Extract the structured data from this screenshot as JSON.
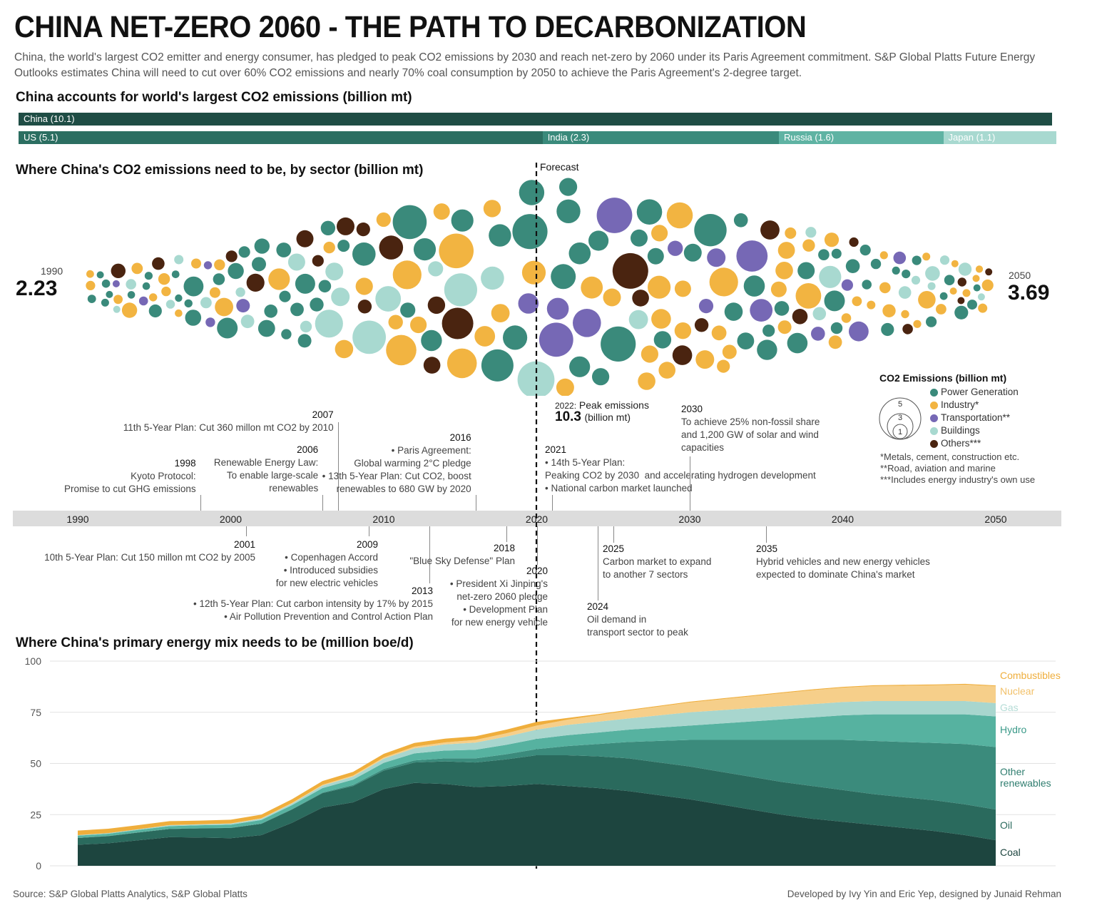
{
  "title": "CHINA NET-ZERO 2060 - THE PATH TO DECARBONIZATION",
  "intro": "China, the world's largest CO2 emitter and energy consumer, has pledged to peak CO2 emissions by 2030 and reach net-zero by 2060 under its Paris Agreement commitment. S&P Global Platts Future Energy Outlooks estimates China will need to cut over 60% CO2 emissions and nearly 70% coal consumption by 2050 to achieve the Paris Agreement's 2-degree target.",
  "colors": {
    "china": "#1f4d45",
    "us": "#2b6e61",
    "india": "#3a8a7b",
    "russia": "#5fb3a3",
    "japan": "#a8d9d0",
    "power": "#3a8a7b",
    "industry": "#f2b441",
    "transport": "#7668b5",
    "buildings": "#a8d9d0",
    "others": "#4a2410",
    "coal": "#1d453f",
    "oil": "#2a6a5d",
    "other_renewables": "#3b8b7c",
    "hydro": "#56b2a0",
    "gas": "#a8d6ce",
    "nuclear": "#f6cf8a",
    "combustibles": "#efae3c"
  },
  "emissions_bars": {
    "title": "China accounts for world's largest CO2 emissions (billion mt)",
    "china": "China (10.1)",
    "others": [
      {
        "label": "US (5.1)",
        "value": 5.1,
        "color": "#2b6e61"
      },
      {
        "label": "India (2.3)",
        "value": 2.3,
        "color": "#3a8a7b"
      },
      {
        "label": "Russia (1.6)",
        "value": 1.6,
        "color": "#5fb3a3"
      },
      {
        "label": "Japan (1.1)",
        "value": 1.1,
        "color": "#a8d9d0"
      }
    ]
  },
  "sector": {
    "title": "Where China's CO2 emissions need to be, by sector (billion mt)",
    "forecast_label": "Forecast",
    "start_year": "1990",
    "start_value": "2.23",
    "end_year": "2050",
    "end_value": "3.69",
    "peak_label": "Peak emissions",
    "peak_year": "2022:",
    "peak_value": "10.3",
    "peak_unit": "(billion mt)"
  },
  "legend": {
    "title": "CO2 Emissions (billion mt)",
    "sizes": [
      "5",
      "3",
      "1"
    ],
    "items": [
      "Power Generation",
      "Industry*",
      "Transportation**",
      "Buildings",
      "Others***"
    ],
    "notes": [
      "*Metals, cement, construction etc.",
      "**Road, aviation and marine",
      "***Includes energy industry's own use"
    ]
  },
  "timeline": {
    "axis_years": [
      "1990",
      "2000",
      "2010",
      "2020",
      "2030",
      "2040",
      "2050"
    ],
    "events_above": [
      {
        "year": "1998",
        "text": "Kyoto Protocol:\nPromise to cut GHG emissions"
      },
      {
        "year": "2006",
        "text": "Renewable Energy Law:\nTo enable large-scale\nrenewables"
      },
      {
        "year": "2007",
        "text": "11th 5-Year Plan: Cut 360 millon mt CO2 by 2010"
      },
      {
        "year": "2016",
        "text": "• Paris Agreement:\nGlobal warming 2°C pledge\n• 13th 5-Year Plan: Cut CO2, boost\nrenewables to 680 GW by 2020"
      },
      {
        "year": "2021",
        "text": "• 14th 5-Year Plan:\nPeaking CO2 by 2030  and accelerating hydrogen development\n• National carbon market launched"
      },
      {
        "year": "2030",
        "text": "To achieve 25% non-fossil share\nand 1,200 GW of solar and wind\ncapacities"
      }
    ],
    "events_below": [
      {
        "year": "2001",
        "text": "10th 5-Year Plan: Cut 150 millon mt CO2 by 2005"
      },
      {
        "year": "2009",
        "text": "• Copenhagen Accord\n• Introduced subsidies\nfor new electric vehicles"
      },
      {
        "year": "2013",
        "text": "• 12th 5-Year Plan: Cut carbon intensity by 17% by 2015\n• Air Pollution Prevention and Control Action Plan"
      },
      {
        "year": "2018",
        "text": "\"Blue Sky Defense\" Plan"
      },
      {
        "year": "2020",
        "text": "• President Xi Jinping's\nnet-zero 2060 pledge\n• Development Plan\nfor new energy vehicle"
      },
      {
        "year": "2024",
        "text": "Oil demand in\ntransport sector to peak"
      },
      {
        "year": "2025",
        "text": "Carbon market to expand\nto another 7 sectors"
      },
      {
        "year": "2035",
        "text": "Hybrid vehicles and new energy vehicles\nexpected to dominate China's market"
      }
    ]
  },
  "chart_data": {
    "type": "area",
    "title": "Where China's primary energy mix needs to be (million boe/d)",
    "x": [
      1990,
      1992,
      1994,
      1996,
      1998,
      2000,
      2002,
      2004,
      2006,
      2008,
      2010,
      2012,
      2014,
      2016,
      2018,
      2020,
      2022,
      2024,
      2026,
      2028,
      2030,
      2032,
      2034,
      2036,
      2038,
      2040,
      2042,
      2044,
      2046,
      2048,
      2050
    ],
    "ylim": [
      0,
      100
    ],
    "yticks": [
      "0",
      "25",
      "50",
      "75",
      "100"
    ],
    "stacked": true,
    "series": [
      {
        "name": "Coal",
        "values": [
          10.3,
          11.0,
          12.5,
          14.0,
          13.8,
          13.5,
          15.0,
          21.0,
          28.5,
          31.0,
          37.5,
          40.5,
          40.0,
          38.5,
          39.0,
          40.0,
          39.0,
          38.0,
          36.5,
          34.5,
          32.5,
          30.0,
          27.5,
          25.0,
          23.0,
          21.5,
          20.0,
          18.5,
          17.0,
          15.0,
          12.5
        ]
      },
      {
        "name": "Oil",
        "values": [
          3.3,
          3.5,
          3.8,
          4.0,
          4.5,
          5.0,
          5.5,
          6.5,
          7.0,
          8.0,
          9.0,
          10.0,
          11.0,
          12.0,
          13.0,
          14.0,
          15.0,
          15.5,
          16.0,
          16.0,
          16.0,
          16.0,
          16.0,
          16.0,
          16.0,
          15.5,
          15.0,
          15.0,
          15.0,
          15.0,
          15.0
        ]
      },
      {
        "name": "Other renewables",
        "values": [
          0.1,
          0.1,
          0.1,
          0.1,
          0.1,
          0.1,
          0.2,
          0.2,
          0.3,
          0.5,
          0.8,
          1.0,
          1.5,
          2.0,
          2.5,
          3.0,
          4.5,
          6.0,
          8.0,
          10.5,
          13.0,
          15.5,
          18.0,
          20.5,
          22.5,
          24.5,
          26.0,
          27.0,
          28.0,
          29.5,
          30.5
        ]
      },
      {
        "name": "Hydro",
        "values": [
          1.0,
          1.1,
          1.2,
          1.3,
          1.4,
          1.5,
          1.7,
          1.9,
          2.2,
          2.6,
          3.0,
          3.4,
          3.8,
          4.2,
          4.6,
          5.0,
          5.3,
          5.6,
          6.0,
          6.5,
          7.0,
          8.0,
          9.0,
          10.0,
          11.0,
          12.0,
          13.0,
          13.5,
          14.0,
          14.5,
          15.0
        ]
      },
      {
        "name": "Gas",
        "values": [
          0.3,
          0.3,
          0.3,
          0.4,
          0.4,
          0.5,
          0.6,
          0.8,
          1.2,
          1.5,
          2.0,
          2.5,
          3.0,
          3.5,
          4.0,
          4.5,
          5.0,
          5.3,
          5.5,
          6.0,
          6.5,
          6.5,
          6.5,
          6.5,
          6.5,
          6.5,
          6.5,
          6.5,
          6.5,
          6.5,
          6.5
        ]
      },
      {
        "name": "Nuclear",
        "values": [
          0.0,
          0.0,
          0.0,
          0.1,
          0.1,
          0.1,
          0.2,
          0.3,
          0.4,
          0.5,
          0.6,
          0.8,
          1.0,
          1.3,
          1.6,
          2.0,
          2.6,
          3.2,
          3.8,
          4.3,
          4.8,
          5.3,
          5.8,
          6.3,
          6.8,
          7.0,
          7.3,
          7.5,
          7.7,
          8.0,
          8.2
        ]
      },
      {
        "name": "Combustibles",
        "values": [
          2.2,
          2.1,
          2.0,
          1.9,
          1.8,
          1.8,
          1.8,
          1.8,
          1.8,
          1.8,
          1.8,
          1.8,
          1.8,
          1.8,
          1.8,
          1.8,
          0.8,
          0.5,
          0.4,
          0.4,
          0.4,
          0.4,
          0.4,
          0.4,
          0.4,
          0.4,
          0.4,
          0.4,
          0.4,
          0.4,
          0.4
        ]
      }
    ]
  },
  "energy_labels": [
    "Combustibles",
    "Nuclear",
    "Gas",
    "Hydro",
    "Other\nrenewables",
    "Oil",
    "Coal"
  ],
  "footer": {
    "source": "Source: S&P Global Platts Analytics, S&P Global Platts",
    "credit": "Developed by Ivy Yin and Eric Yep, designed by Junaid Rehman"
  }
}
